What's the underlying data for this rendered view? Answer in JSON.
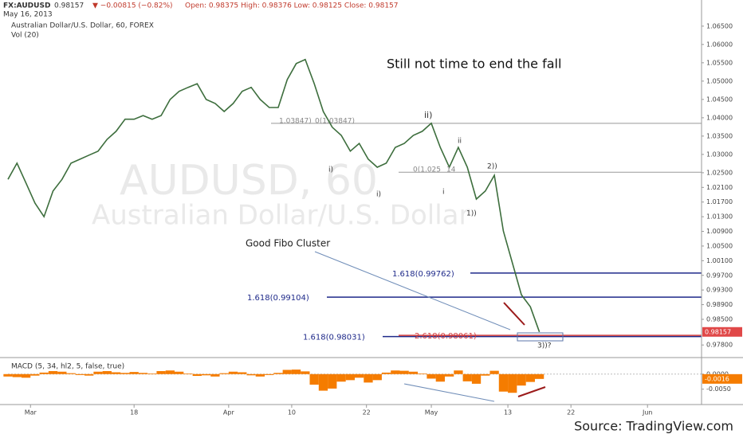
{
  "header": {
    "symbol": "FX:AUDUSD",
    "price": "0.98157",
    "change": "▼ −0.00815 (−0.82%)",
    "ohlc": "Open: 0.98375  High: 0.98376  Low: 0.98125  Close: 0.98157",
    "date": "May 16, 2013",
    "subtitle": "Australian Dollar/U.S. Dollar, 60, FOREX",
    "vol": "Vol (20)",
    "watermark1": "AUDUSD, 60",
    "watermark2": "Australian Dollar/U.S. Dollar",
    "source": "Source: TradingView.com"
  },
  "annotations": {
    "headline": "Still not time to end the fall",
    "cluster": "Good Fibo Cluster",
    "waves": [
      "i)",
      "ii)",
      "i)",
      "ii",
      "i",
      "1))",
      "2))",
      "3))?"
    ],
    "fibs": [
      "1.03847)",
      "0(1.03847)",
      "0(1.025",
      "14"
    ]
  },
  "chart_data": [
    {
      "type": "line",
      "color": "#3d6e3d",
      "x": [
        0,
        1,
        2,
        3,
        4,
        5,
        6,
        7,
        8,
        9,
        10,
        11,
        12,
        13,
        14,
        15,
        16,
        17,
        18,
        19,
        20,
        21,
        22,
        23,
        24,
        25,
        26,
        27,
        28,
        29,
        30,
        31,
        32,
        33,
        34,
        35,
        36,
        37,
        38,
        39,
        40,
        41,
        42,
        43,
        44,
        45,
        46,
        47,
        48,
        49,
        50,
        51,
        52,
        53,
        54,
        55,
        56,
        57,
        58,
        59
      ],
      "values": [
        1.0232,
        1.0276,
        1.0222,
        1.0167,
        1.013,
        1.02,
        1.0232,
        1.0276,
        1.0287,
        1.0298,
        1.0309,
        1.0341,
        1.0363,
        1.0396,
        1.0396,
        1.0406,
        1.0396,
        1.0406,
        1.045,
        1.0472,
        1.0483,
        1.0493,
        1.045,
        1.0439,
        1.0417,
        1.0439,
        1.0472,
        1.0483,
        1.045,
        1.0428,
        1.0428,
        1.0504,
        1.0548,
        1.0559,
        1.0493,
        1.0417,
        1.0374,
        1.0352,
        1.0309,
        1.033,
        1.0287,
        1.0265,
        1.0276,
        1.0319,
        1.033,
        1.0352,
        1.0363,
        1.0385,
        1.0319,
        1.0265,
        1.0319,
        1.0265,
        1.0178,
        1.02,
        1.0243,
        1.0091,
        1.0004,
        0.9917,
        0.9884,
        0.98157
      ],
      "xlim": [
        0,
        77
      ],
      "xticks": [
        {
          "value": 2.5,
          "label": "Mar"
        },
        {
          "value": 14,
          "label": "18"
        },
        {
          "value": 24.5,
          "label": "Apr"
        },
        {
          "value": 31.5,
          "label": "10"
        },
        {
          "value": 39.8,
          "label": "22"
        },
        {
          "value": 47,
          "label": "May"
        },
        {
          "value": 55.5,
          "label": "13"
        },
        {
          "value": 62.5,
          "label": "22"
        },
        {
          "value": 71,
          "label": "Jun"
        }
      ],
      "ylim": [
        0.975,
        1.0667
      ],
      "yticks": [
        {
          "value": 1.065,
          "label": "1.06500"
        },
        {
          "value": 1.06,
          "label": "1.06000"
        },
        {
          "value": 1.055,
          "label": "1.05500"
        },
        {
          "value": 1.05,
          "label": "1.05000"
        },
        {
          "value": 1.045,
          "label": "1.04500"
        },
        {
          "value": 1.04,
          "label": "1.04000"
        },
        {
          "value": 1.035,
          "label": "1.03500"
        },
        {
          "value": 1.03,
          "label": "1.03000"
        },
        {
          "value": 1.025,
          "label": "1.02500"
        },
        {
          "value": 1.021,
          "label": "1.02100"
        },
        {
          "value": 1.017,
          "label": "1.01700"
        },
        {
          "value": 1.013,
          "label": "1.01300"
        },
        {
          "value": 1.009,
          "label": "1.00900"
        },
        {
          "value": 1.005,
          "label": "1.00500"
        },
        {
          "value": 1.001,
          "label": "1.00100"
        },
        {
          "value": 0.997,
          "label": "0.99700"
        },
        {
          "value": 0.993,
          "label": "0.99300"
        },
        {
          "value": 0.989,
          "label": "0.98900"
        },
        {
          "value": 0.985,
          "label": "0.98500"
        },
        {
          "value": 0.978,
          "label": "0.97800"
        }
      ],
      "levels": [
        {
          "value": 1.03847,
          "color": "#999999"
        },
        {
          "value": 1.02514,
          "color": "#999999"
        },
        {
          "value": 0.99762,
          "label": "1.618(0.99762)",
          "color": "#1f2a8a"
        },
        {
          "value": 0.99104,
          "label": "1.618(0.99104)",
          "color": "#1f2a8a"
        },
        {
          "value": 0.98031,
          "label": "1.618(0.98031)",
          "color": "#1f2a8a"
        },
        {
          "value": 0.98061,
          "label": "2.618(0.98061)",
          "color": "#d23a3a"
        }
      ]
    },
    {
      "type": "bar",
      "title": "MACD (5, 34, hl2, 5, false, true)",
      "color": "#f57c00",
      "x": [
        0,
        1,
        2,
        3,
        4,
        5,
        6,
        7,
        8,
        9,
        10,
        11,
        12,
        13,
        14,
        15,
        16,
        17,
        18,
        19,
        20,
        21,
        22,
        23,
        24,
        25,
        26,
        27,
        28,
        29,
        30,
        31,
        32,
        33,
        34,
        35,
        36,
        37,
        38,
        39,
        40,
        41,
        42,
        43,
        44,
        45,
        46,
        47,
        48,
        49,
        50,
        51,
        52,
        53,
        54,
        55,
        56,
        57,
        58,
        59
      ],
      "values": [
        -0.0008,
        -0.001,
        -0.0012,
        -0.0005,
        0.0005,
        0.001,
        0.0008,
        0.0003,
        -0.0003,
        -0.0005,
        0.0008,
        0.001,
        0.0006,
        0.0004,
        0.0007,
        0.0004,
        0.0002,
        0.001,
        0.0012,
        0.0008,
        0.0002,
        -0.0006,
        -0.0004,
        -0.0008,
        0.0003,
        0.0008,
        0.0006,
        -0.0004,
        -0.0008,
        -0.0003,
        0.0004,
        0.0014,
        0.0015,
        0.0009,
        -0.0035,
        -0.0055,
        -0.0048,
        -0.0025,
        -0.002,
        -0.0012,
        -0.0028,
        -0.002,
        0.0005,
        0.0012,
        0.0011,
        0.0008,
        0.0002,
        -0.0015,
        -0.0025,
        -0.0008,
        0.0012,
        -0.0024,
        -0.0032,
        -0.0005,
        0.0011,
        -0.0058,
        -0.0062,
        -0.0038,
        -0.0026,
        -0.0016
      ],
      "value_labels": [
        null,
        null,
        null,
        null,
        null,
        null,
        null,
        null,
        null,
        null,
        null,
        null,
        null,
        null,
        null,
        null,
        null,
        null,
        null,
        null,
        null,
        null,
        null,
        null,
        null,
        null,
        null,
        null,
        null,
        null,
        null,
        null,
        null,
        null,
        null,
        null,
        null,
        null,
        null,
        null,
        null,
        null,
        null,
        null,
        null,
        null,
        null,
        null,
        null,
        null,
        null,
        null,
        null,
        null,
        null,
        null,
        null,
        null,
        null,
        "-0.0016"
      ],
      "xlim": [
        0,
        77
      ],
      "ylim": [
        -0.0101,
        0.0039
      ],
      "yticks": [
        {
          "value": 0,
          "label": "0.0000"
        },
        {
          "value": -0.005,
          "label": "-0.0050"
        }
      ]
    }
  ]
}
